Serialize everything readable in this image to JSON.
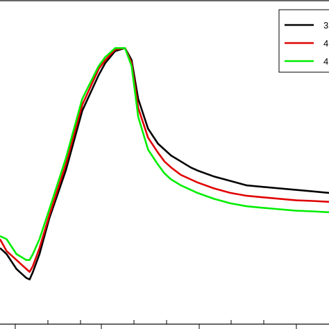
{
  "chart_data": {
    "type": "line",
    "title": "",
    "xlabel": "",
    "ylabel": "",
    "grid": false,
    "legend_placement": "top-right",
    "xlim": [
      0,
      100
    ],
    "ylim": [
      0,
      100
    ],
    "series": [
      {
        "name": "3",
        "color": "#000000",
        "x": [
          0,
          2,
          5,
          8,
          9,
          10,
          12,
          15,
          20,
          25,
          30,
          32,
          35,
          38,
          40,
          42,
          45,
          48,
          50,
          52,
          55,
          58,
          60,
          65,
          70,
          75,
          80,
          85,
          90,
          95,
          100
        ],
        "y": [
          22,
          20,
          15,
          12,
          11.5,
          14,
          20,
          32,
          48,
          68,
          80,
          84,
          88,
          89,
          85,
          72,
          62,
          57,
          55,
          53,
          51,
          49,
          48,
          46,
          44.5,
          43,
          42.5,
          42,
          41.5,
          41,
          40.5
        ]
      },
      {
        "name": "4",
        "color": "#e00000",
        "x": [
          0,
          2,
          5,
          8,
          9,
          10,
          12,
          15,
          20,
          25,
          30,
          32,
          35,
          38,
          40,
          42,
          45,
          48,
          50,
          52,
          55,
          58,
          60,
          65,
          70,
          75,
          80,
          85,
          90,
          95,
          100
        ],
        "y": [
          25,
          21,
          18,
          15,
          14,
          16,
          22,
          33,
          50,
          70,
          82,
          85,
          88.5,
          89,
          84,
          69,
          59,
          54,
          51,
          49,
          46.5,
          45,
          44,
          42,
          40.5,
          39.5,
          39,
          38.5,
          38,
          37.8,
          37.5
        ]
      },
      {
        "name": "4",
        "color": "#00ee00",
        "x": [
          0,
          2,
          5,
          8,
          9,
          10,
          12,
          15,
          20,
          25,
          30,
          32,
          35,
          38,
          40,
          42,
          45,
          48,
          50,
          52,
          55,
          58,
          60,
          65,
          70,
          75,
          80,
          85,
          90,
          95,
          100
        ],
        "y": [
          26,
          25,
          20,
          18,
          18,
          20,
          25,
          35,
          52,
          72,
          83,
          86,
          89,
          89,
          83,
          66,
          55,
          50,
          47,
          45,
          43,
          41.5,
          40.5,
          38.5,
          37,
          36,
          35.5,
          35,
          34.5,
          34.3,
          34
        ]
      }
    ]
  }
}
